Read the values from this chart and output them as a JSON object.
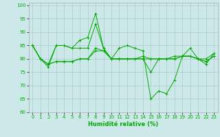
{
  "xlabel": "Humidité relative (%)",
  "background_color": "#cce8e8",
  "grid_color": "#aacccc",
  "line_color": "#00aa00",
  "xlim": [
    -0.5,
    23.5
  ],
  "ylim": [
    60,
    101
  ],
  "yticks": [
    60,
    65,
    70,
    75,
    80,
    85,
    90,
    95,
    100
  ],
  "xticks": [
    0,
    1,
    2,
    3,
    4,
    5,
    6,
    7,
    8,
    9,
    10,
    11,
    12,
    13,
    14,
    15,
    16,
    17,
    18,
    19,
    20,
    21,
    22,
    23
  ],
  "series": [
    [
      85,
      80,
      77,
      85,
      85,
      84,
      87,
      88,
      97,
      84,
      80,
      84,
      85,
      84,
      83,
      65,
      68,
      67,
      72,
      81,
      84,
      80,
      78,
      82
    ],
    [
      85,
      80,
      78,
      85,
      85,
      84,
      84,
      84,
      93,
      84,
      80,
      80,
      80,
      80,
      80,
      75,
      80,
      80,
      80,
      81,
      81,
      80,
      80,
      82
    ],
    [
      85,
      80,
      78,
      79,
      79,
      79,
      80,
      80,
      84,
      83,
      80,
      80,
      80,
      80,
      81,
      80,
      80,
      80,
      81,
      81,
      81,
      80,
      79,
      81
    ],
    [
      85,
      80,
      78,
      79,
      79,
      79,
      80,
      80,
      83,
      83,
      80,
      80,
      80,
      80,
      80,
      80,
      80,
      80,
      80,
      81,
      81,
      80,
      79,
      81
    ]
  ]
}
